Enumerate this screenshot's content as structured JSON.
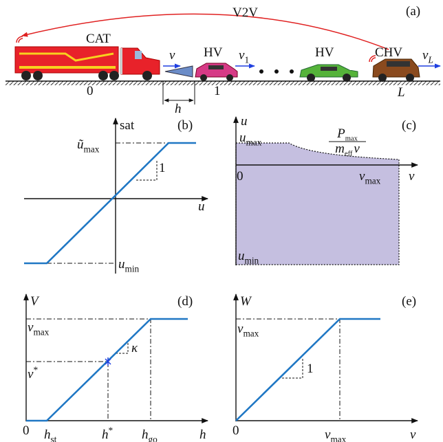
{
  "panels": {
    "a": {
      "label": "(a)",
      "link": "V2V",
      "vehicles": [
        "CAT",
        "HV",
        "HV",
        "CHV"
      ],
      "speeds": [
        {
          "base": "v"
        },
        {
          "base": "v",
          "sub": "1"
        },
        {
          "base": "v",
          "sub": "L"
        }
      ],
      "positions": [
        "0",
        "1",
        "L"
      ],
      "gap": "h"
    },
    "b": {
      "label": "(b)",
      "y_axis": "sat",
      "x_axis": "u",
      "upper": {
        "base": "ũ",
        "sub": "max"
      },
      "lower": {
        "base": "u",
        "sub": "min"
      },
      "slope": "1"
    },
    "c": {
      "label": "(c)",
      "y_axis": "u",
      "x_axis": "v",
      "origin": "0",
      "upper": {
        "base": "u",
        "sub": "max"
      },
      "lower": {
        "base": "u",
        "sub": "min"
      },
      "vmax": {
        "base": "v",
        "sub": "max"
      },
      "frac_num": {
        "base": "P",
        "sub": "max"
      },
      "frac_den": {
        "base": "m",
        "sub": "eff",
        "tail": "v"
      }
    },
    "d": {
      "label": "(d)",
      "y_axis": "V",
      "x_axis": "h",
      "origin": "0",
      "vmax": {
        "base": "v",
        "sub": "max"
      },
      "vstar": {
        "base": "v",
        "sup": "*"
      },
      "slope": "κ",
      "h_st": {
        "base": "h",
        "sub": "st"
      },
      "h_star": {
        "base": "h",
        "sup": "*"
      },
      "h_go": {
        "base": "h",
        "sub": "go"
      }
    },
    "e": {
      "label": "(e)",
      "y_axis": "W",
      "x_axis": "v",
      "origin": "0",
      "vmax_y": {
        "base": "v",
        "sub": "max"
      },
      "vmax_x": {
        "base": "v",
        "sub": "max"
      },
      "slope": "1"
    }
  }
}
